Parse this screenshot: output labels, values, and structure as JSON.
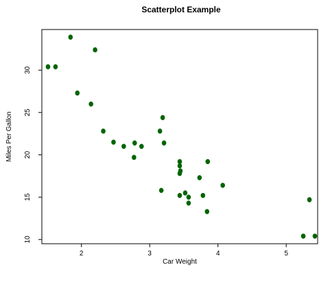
{
  "chart_data": {
    "type": "scatter",
    "title": "Scatterplot Example",
    "xlabel": "Car Weight",
    "ylabel": "Miles Per Gallon",
    "xlim": [
      1.42,
      5.46
    ],
    "ylim": [
      9.5,
      34.8
    ],
    "xticks": [
      2,
      3,
      4,
      5
    ],
    "yticks": [
      10,
      15,
      20,
      25,
      30
    ],
    "grid": false,
    "point_color": "#006400",
    "series": [
      {
        "points": [
          {
            "x": 1.51,
            "y": 30.4
          },
          {
            "x": 1.62,
            "y": 30.4
          },
          {
            "x": 1.84,
            "y": 33.9
          },
          {
            "x": 1.94,
            "y": 27.3
          },
          {
            "x": 2.14,
            "y": 26.0
          },
          {
            "x": 2.2,
            "y": 32.4
          },
          {
            "x": 2.32,
            "y": 22.8
          },
          {
            "x": 2.47,
            "y": 21.5
          },
          {
            "x": 2.62,
            "y": 21.0
          },
          {
            "x": 2.77,
            "y": 19.7
          },
          {
            "x": 2.78,
            "y": 21.4
          },
          {
            "x": 2.88,
            "y": 21.0
          },
          {
            "x": 3.15,
            "y": 22.8
          },
          {
            "x": 3.17,
            "y": 15.8
          },
          {
            "x": 3.19,
            "y": 24.4
          },
          {
            "x": 3.21,
            "y": 21.4
          },
          {
            "x": 3.44,
            "y": 19.2
          },
          {
            "x": 3.44,
            "y": 18.7
          },
          {
            "x": 3.44,
            "y": 17.8
          },
          {
            "x": 3.45,
            "y": 18.1
          },
          {
            "x": 3.44,
            "y": 15.2
          },
          {
            "x": 3.52,
            "y": 15.5
          },
          {
            "x": 3.57,
            "y": 15.0
          },
          {
            "x": 3.57,
            "y": 14.3
          },
          {
            "x": 3.73,
            "y": 17.3
          },
          {
            "x": 3.78,
            "y": 15.2
          },
          {
            "x": 3.84,
            "y": 13.3
          },
          {
            "x": 3.85,
            "y": 19.2
          },
          {
            "x": 4.07,
            "y": 16.4
          },
          {
            "x": 5.25,
            "y": 10.4
          },
          {
            "x": 5.34,
            "y": 14.7
          },
          {
            "x": 5.42,
            "y": 10.4
          }
        ]
      }
    ]
  }
}
